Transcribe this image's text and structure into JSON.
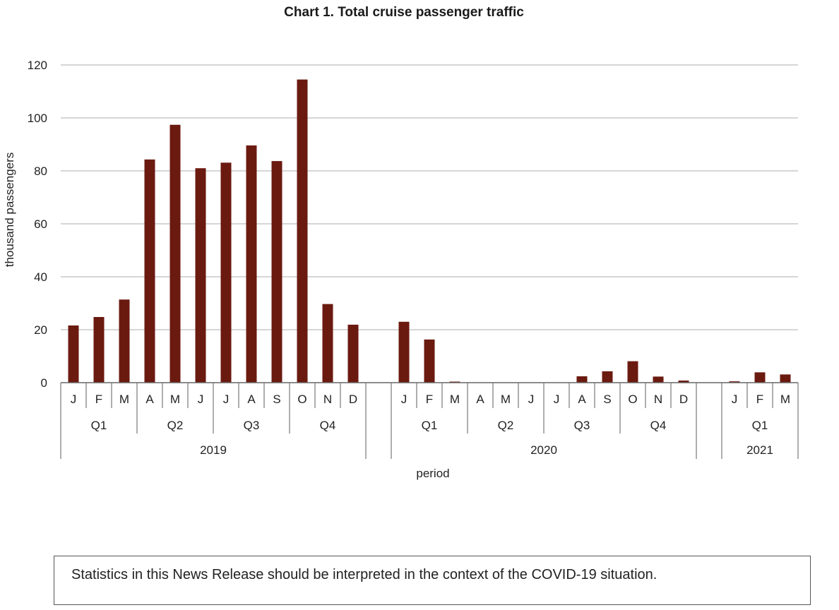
{
  "chart_data": {
    "type": "bar",
    "title": "Chart 1. Total cruise passenger traffic",
    "ylabel": "thousand passengers",
    "xlabel": "period",
    "ylim": [
      0,
      120
    ],
    "yticks": [
      0,
      20,
      40,
      60,
      80,
      100,
      120
    ],
    "grid": true,
    "bar_color": "#6b1a10",
    "years": [
      {
        "label": "2019",
        "quarters": [
          {
            "label": "Q1",
            "months": [
              {
                "m": "J",
                "v": 21.6
              },
              {
                "m": "F",
                "v": 24.8
              },
              {
                "m": "M",
                "v": 31.4
              }
            ]
          },
          {
            "label": "Q2",
            "months": [
              {
                "m": "A",
                "v": 84.3
              },
              {
                "m": "M",
                "v": 97.4
              },
              {
                "m": "J",
                "v": 81.0
              }
            ]
          },
          {
            "label": "Q3",
            "months": [
              {
                "m": "J",
                "v": 83.1
              },
              {
                "m": "A",
                "v": 89.6
              },
              {
                "m": "S",
                "v": 83.7
              }
            ]
          },
          {
            "label": "Q4",
            "months": [
              {
                "m": "O",
                "v": 114.5
              },
              {
                "m": "N",
                "v": 29.7
              },
              {
                "m": "D",
                "v": 21.9
              }
            ]
          }
        ]
      },
      {
        "label": "2020",
        "quarters": [
          {
            "label": "Q1",
            "months": [
              {
                "m": "J",
                "v": 23.0
              },
              {
                "m": "F",
                "v": 16.3
              },
              {
                "m": "M",
                "v": 0.4
              }
            ]
          },
          {
            "label": "Q2",
            "months": [
              {
                "m": "A",
                "v": 0
              },
              {
                "m": "M",
                "v": 0
              },
              {
                "m": "J",
                "v": 0
              }
            ]
          },
          {
            "label": "Q3",
            "months": [
              {
                "m": "J",
                "v": 0
              },
              {
                "m": "A",
                "v": 2.4
              },
              {
                "m": "S",
                "v": 4.3
              }
            ]
          },
          {
            "label": "Q4",
            "months": [
              {
                "m": "O",
                "v": 8.1
              },
              {
                "m": "N",
                "v": 2.3
              },
              {
                "m": "D",
                "v": 0.8
              }
            ]
          }
        ]
      },
      {
        "label": "2021",
        "quarters": [
          {
            "label": "Q1",
            "months": [
              {
                "m": "J",
                "v": 0.5
              },
              {
                "m": "F",
                "v": 3.9
              },
              {
                "m": "M",
                "v": 3.1
              }
            ]
          }
        ]
      }
    ]
  },
  "notice": {
    "text": "Statistics in this News Release should be interpreted in the context of the COVID-19 situation."
  }
}
